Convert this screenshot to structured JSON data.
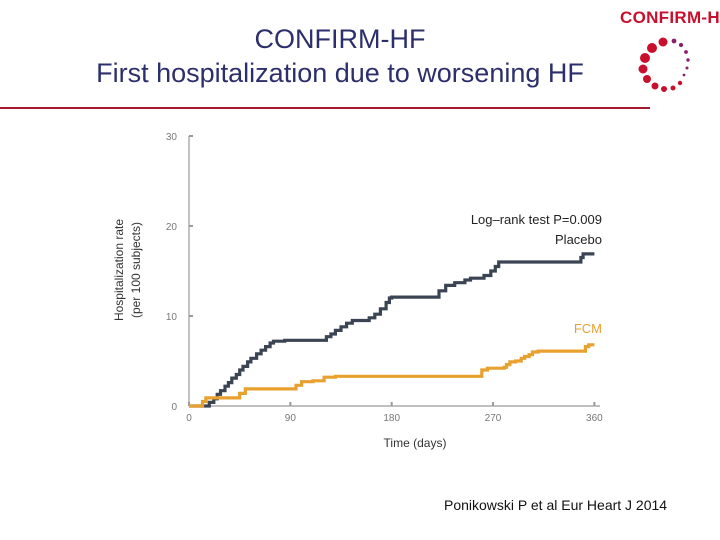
{
  "slide": {
    "title_line1": "CONFIRM-HF",
    "title_line2": "First hospitalization due to worsening HF",
    "logo_text": "CONFIRM-HF",
    "citation": "Ponikowski P et al Eur Heart J 2014"
  },
  "colors": {
    "title": "#2c2f6b",
    "accent_line": "#a5192e",
    "placebo": "#3b4453",
    "fcm": "#e8a12e",
    "axis": "#9a9a9a"
  },
  "chart_data": {
    "type": "line",
    "title": "",
    "xlabel": "Time (days)",
    "ylabel_line1": "Hospitalization rate",
    "ylabel_line2": "(per 100 subjects)",
    "xlim": [
      0,
      365
    ],
    "ylim": [
      0,
      30
    ],
    "xticks": [
      0,
      90,
      180,
      270,
      360
    ],
    "yticks": [
      0,
      10,
      20,
      30
    ],
    "annotation": "Log–rank test P=0.009",
    "series": [
      {
        "name": "Placebo",
        "x": [
          0,
          15,
          18,
          22,
          25,
          28,
          32,
          35,
          38,
          42,
          45,
          48,
          52,
          55,
          60,
          64,
          68,
          72,
          75,
          80,
          85,
          88,
          92,
          100,
          108,
          118,
          122,
          126,
          130,
          135,
          140,
          145,
          155,
          160,
          165,
          170,
          175,
          178,
          180,
          195,
          205,
          210,
          215,
          222,
          228,
          236,
          245,
          250,
          255,
          260,
          262,
          265,
          268,
          272,
          275,
          280,
          290,
          300,
          310,
          330,
          345,
          348,
          350,
          358,
          360
        ],
        "y": [
          0,
          0,
          0.4,
          0.8,
          1.3,
          1.7,
          2.2,
          2.6,
          3.1,
          3.5,
          4.0,
          4.4,
          4.9,
          5.3,
          5.8,
          6.2,
          6.6,
          7.0,
          7.2,
          7.2,
          7.3,
          7.3,
          7.3,
          7.3,
          7.3,
          7.3,
          7.7,
          8.0,
          8.4,
          8.8,
          9.2,
          9.5,
          9.5,
          9.8,
          10.2,
          10.8,
          11.5,
          12.0,
          12.1,
          12.1,
          12.1,
          12.1,
          12.1,
          12.8,
          13.4,
          13.7,
          14.0,
          14.2,
          14.2,
          14.2,
          14.5,
          14.5,
          15.0,
          15.5,
          16.0,
          16.0,
          16.0,
          16.0,
          16.0,
          16.0,
          16.0,
          16.5,
          16.9,
          16.9,
          16.9
        ]
      },
      {
        "name": "FCM",
        "x": [
          0,
          8,
          12,
          15,
          20,
          28,
          32,
          45,
          50,
          60,
          80,
          95,
          100,
          110,
          120,
          130,
          150,
          180,
          220,
          255,
          260,
          265,
          270,
          280,
          282,
          285,
          290,
          295,
          298,
          302,
          305,
          310,
          320,
          340,
          350,
          352,
          355,
          358,
          360
        ],
        "y": [
          0,
          0,
          0.5,
          0.9,
          0.9,
          0.9,
          0.9,
          1.4,
          1.9,
          1.9,
          1.9,
          2.3,
          2.7,
          2.8,
          3.2,
          3.3,
          3.3,
          3.3,
          3.3,
          3.3,
          4.0,
          4.2,
          4.2,
          4.3,
          4.6,
          4.9,
          5.0,
          5.3,
          5.5,
          5.7,
          6.0,
          6.1,
          6.1,
          6.1,
          6.1,
          6.6,
          6.8,
          6.8,
          6.8
        ]
      }
    ]
  }
}
